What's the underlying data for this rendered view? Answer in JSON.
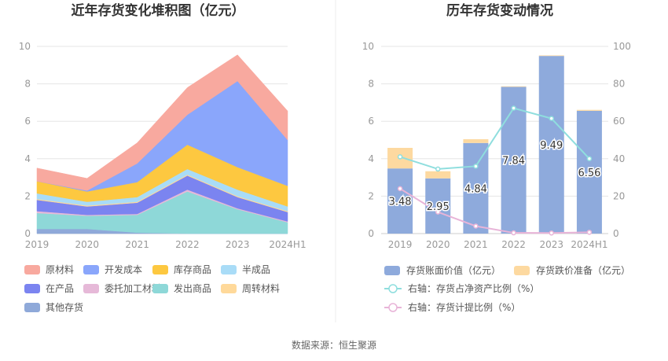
{
  "source": "数据来源：恒生聚源",
  "chart_data": [
    {
      "type": "area",
      "stacked": true,
      "title": "近年存货变化堆积图（亿元）",
      "categories": [
        "2019",
        "2020",
        "2021",
        "2022",
        "2023",
        "2024H1"
      ],
      "ylim": [
        0,
        10
      ],
      "yticks": [
        0,
        2,
        4,
        6,
        8,
        10
      ],
      "grid": true,
      "legend_position": "bottom",
      "series": [
        {
          "name": "其他存货",
          "color": "#8fa9d9",
          "values": [
            0.25,
            0.25,
            0.05,
            0,
            0,
            0
          ]
        },
        {
          "name": "发出商品",
          "color": "#8ed8d8",
          "values": [
            0.85,
            0.7,
            0.95,
            2.25,
            1.3,
            0.6
          ]
        },
        {
          "name": "委托加工材料",
          "color": "#e6b9d8",
          "values": [
            0.1,
            0.05,
            0.05,
            0.1,
            0.05,
            0.05
          ]
        },
        {
          "name": "在产品",
          "color": "#7b84f0",
          "values": [
            0.6,
            0.45,
            0.6,
            0.75,
            0.6,
            0.5
          ]
        },
        {
          "name": "周转材料",
          "color": "#ffd99a",
          "values": [
            0.05,
            0.05,
            0.05,
            0.05,
            0.05,
            0.05
          ]
        },
        {
          "name": "半成品",
          "color": "#a9dcf7",
          "values": [
            0.3,
            0.2,
            0.25,
            0.3,
            0.35,
            0.25
          ]
        },
        {
          "name": "库存商品",
          "color": "#fdc840",
          "values": [
            0.65,
            0.55,
            0.8,
            1.3,
            1.2,
            1.1
          ]
        },
        {
          "name": "开发成本",
          "color": "#8aa6fb",
          "values": [
            0,
            0.05,
            1.0,
            1.6,
            4.6,
            2.45
          ]
        },
        {
          "name": "原材料",
          "color": "#f8a99f",
          "values": [
            0.7,
            0.65,
            1.1,
            1.45,
            1.4,
            1.55
          ]
        }
      ],
      "legend_order": [
        "原材料",
        "开发成本",
        "库存商品",
        "半成品",
        "在产品",
        "委托加工材料",
        "发出商品",
        "周转材料",
        "其他存货"
      ]
    },
    {
      "type": "bar",
      "title": "历年存货变动情况",
      "categories": [
        "2019",
        "2020",
        "2021",
        "2022",
        "2023",
        "2024H1"
      ],
      "ylim": [
        0,
        10
      ],
      "yticks": [
        0,
        2,
        4,
        6,
        8,
        10
      ],
      "y2lim": [
        0,
        100
      ],
      "y2ticks": [
        0,
        20,
        40,
        60,
        80,
        100
      ],
      "grid": true,
      "legend_position": "bottom",
      "series": [
        {
          "name": "存货账面价值（亿元）",
          "kind": "bar",
          "color": "#8eaadc",
          "values": [
            3.48,
            2.95,
            4.84,
            7.84,
            9.49,
            6.56
          ],
          "labels": [
            "3.48",
            "2.95",
            "4.84",
            "7.84",
            "9.49",
            "6.56"
          ]
        },
        {
          "name": "存货跌价准备（亿元）",
          "kind": "bar",
          "color": "#fdd9a0",
          "values": [
            1.1,
            0.38,
            0.2,
            0.03,
            0.03,
            0.05
          ]
        },
        {
          "name": "右轴：存货占净资产比例（%）",
          "kind": "line",
          "axis": "right",
          "color": "#8fdede",
          "values": [
            41,
            34.5,
            36,
            67,
            61.5,
            40
          ]
        },
        {
          "name": "右轴：存货计提比例（%）",
          "kind": "line",
          "axis": "right",
          "color": "#e8b4d8",
          "values": [
            24,
            11.5,
            4,
            0.4,
            0.3,
            0.7
          ]
        }
      ]
    }
  ]
}
